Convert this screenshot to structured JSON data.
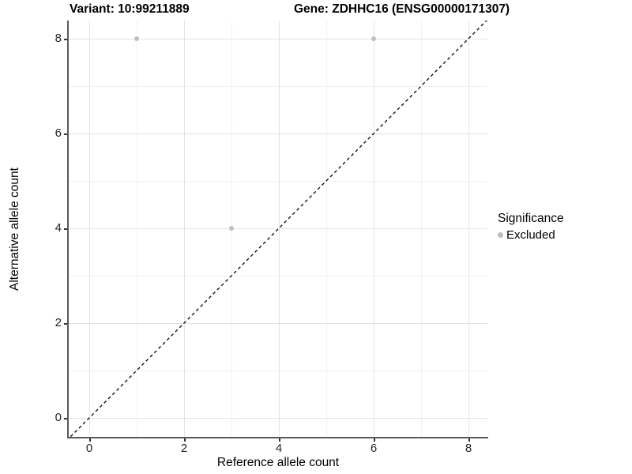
{
  "titles": {
    "variant": "Variant: 10:99211889",
    "gene": "Gene: ZDHHC16 (ENSG00000171307)"
  },
  "chart_data": {
    "type": "scatter",
    "title_left": "Variant: 10:99211889",
    "title_right": "Gene: ZDHHC16 (ENSG00000171307)",
    "xlabel": "Reference allele count",
    "ylabel": "Alternative allele count",
    "xlim": [
      -0.45,
      8.4
    ],
    "ylim": [
      -0.45,
      8.4
    ],
    "xticks": [
      0,
      2,
      4,
      6,
      8
    ],
    "yticks": [
      0,
      2,
      4,
      6,
      8
    ],
    "xgrid_minor": [
      1,
      3,
      5,
      7
    ],
    "ygrid_minor": [
      1,
      3,
      5,
      7
    ],
    "grid": true,
    "series": [
      {
        "name": "Excluded",
        "color": "#bebebe",
        "points": [
          {
            "x": 1,
            "y": 8
          },
          {
            "x": 6,
            "y": 8
          },
          {
            "x": 3,
            "y": 4
          }
        ]
      }
    ],
    "reference_line": {
      "type": "identity (y = x)",
      "slope": 1,
      "intercept": 0,
      "style": "dashed",
      "color": "#000000"
    },
    "legend": {
      "position": "right",
      "title": "Significance",
      "entries": [
        {
          "label": "Excluded",
          "color": "#bebebe"
        }
      ]
    }
  },
  "colors": {
    "background": "#ffffff",
    "axis_line": "#595959",
    "tick_label": "#262626",
    "grid_major": "#e3e3e3",
    "grid_minor": "#f1f1f1",
    "point": "#bebebe"
  }
}
